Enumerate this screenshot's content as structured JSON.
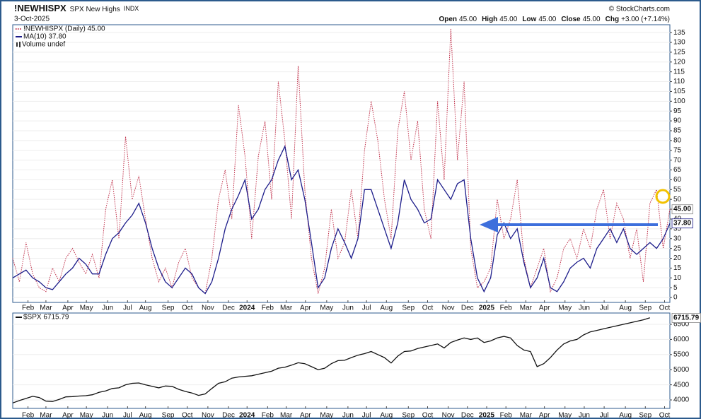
{
  "header": {
    "symbol": "!NEWHISPX",
    "name": "SPX New Highs",
    "exchange": "INDX",
    "date": "3-Oct-2025",
    "copyright": "© StockCharts.com",
    "quote": [
      {
        "label": "Open",
        "value": "45.00"
      },
      {
        "label": "High",
        "value": "45.00"
      },
      {
        "label": "Low",
        "value": "45.00"
      },
      {
        "label": "Close",
        "value": "45.00"
      },
      {
        "label": "Chg",
        "value": "+3.00 (+7.14%)"
      }
    ]
  },
  "chart_data": [
    {
      "type": "line",
      "legend_note": "Volume undef",
      "series": [
        {
          "name": "!NEWHISPX (Daily) 45.00",
          "color": "#c0304a",
          "style": "dotted",
          "last_label": "45.00",
          "values": [
            20,
            8,
            28,
            12,
            5,
            3,
            15,
            8,
            20,
            25,
            18,
            12,
            22,
            10,
            45,
            60,
            30,
            82,
            50,
            62,
            40,
            20,
            8,
            15,
            5,
            18,
            25,
            10,
            5,
            2,
            20,
            50,
            65,
            40,
            98,
            72,
            30,
            72,
            90,
            50,
            110,
            80,
            40,
            118,
            55,
            20,
            2,
            15,
            45,
            20,
            28,
            55,
            30,
            75,
            100,
            80,
            50,
            30,
            85,
            105,
            70,
            90,
            45,
            30,
            100,
            60,
            137,
            70,
            110,
            25,
            5,
            8,
            15,
            50,
            30,
            40,
            60,
            20,
            5,
            15,
            25,
            3,
            10,
            25,
            30,
            20,
            35,
            25,
            45,
            55,
            30,
            48,
            40,
            20,
            35,
            8,
            48,
            55,
            25,
            45
          ]
        },
        {
          "name": "MA(10) 37.80",
          "color": "#1c1c8a",
          "style": "solid",
          "last_label": "37.80",
          "values": [
            10,
            12,
            14,
            10,
            8,
            5,
            4,
            8,
            12,
            15,
            20,
            17,
            12,
            12,
            22,
            30,
            33,
            38,
            42,
            48,
            38,
            25,
            15,
            8,
            5,
            10,
            15,
            12,
            5,
            2,
            8,
            20,
            35,
            45,
            52,
            60,
            40,
            45,
            55,
            60,
            70,
            77,
            60,
            65,
            50,
            28,
            5,
            10,
            25,
            35,
            28,
            20,
            30,
            55,
            55,
            45,
            35,
            25,
            38,
            60,
            50,
            45,
            38,
            40,
            60,
            55,
            50,
            58,
            60,
            30,
            10,
            3,
            10,
            32,
            38,
            30,
            35,
            18,
            5,
            10,
            20,
            5,
            3,
            8,
            15,
            18,
            20,
            15,
            25,
            30,
            35,
            28,
            35,
            25,
            22,
            25,
            28,
            25,
            30,
            37.8
          ]
        }
      ],
      "xlim": [
        0,
        99
      ],
      "xticks": [
        {
          "value": 2.3,
          "label": "Feb"
        },
        {
          "value": 5.0,
          "label": "Mar"
        },
        {
          "value": 8.3,
          "label": "Apr"
        },
        {
          "value": 11.1,
          "label": "May"
        },
        {
          "value": 14.3,
          "label": "Jun"
        },
        {
          "value": 17.3,
          "label": "Jul"
        },
        {
          "value": 20.0,
          "label": "Aug"
        },
        {
          "value": 23.4,
          "label": "Sep"
        },
        {
          "value": 26.3,
          "label": "Oct"
        },
        {
          "value": 29.4,
          "label": "Nov"
        },
        {
          "value": 32.5,
          "label": "Dec"
        },
        {
          "value": 35.3,
          "label": "2024"
        },
        {
          "value": 38.4,
          "label": "Feb"
        },
        {
          "value": 41.2,
          "label": "Mar"
        },
        {
          "value": 44.1,
          "label": "Apr"
        },
        {
          "value": 47.3,
          "label": "May"
        },
        {
          "value": 50.5,
          "label": "Jun"
        },
        {
          "value": 53.3,
          "label": "Jul"
        },
        {
          "value": 56.3,
          "label": "Aug"
        },
        {
          "value": 59.6,
          "label": "Sep"
        },
        {
          "value": 62.5,
          "label": "Oct"
        },
        {
          "value": 65.6,
          "label": "Nov"
        },
        {
          "value": 68.5,
          "label": "Dec"
        },
        {
          "value": 71.4,
          "label": "2025"
        },
        {
          "value": 74.3,
          "label": "Feb"
        },
        {
          "value": 77.3,
          "label": "Mar"
        },
        {
          "value": 80.1,
          "label": "Apr"
        },
        {
          "value": 83.2,
          "label": "May"
        },
        {
          "value": 86.1,
          "label": "Jun"
        },
        {
          "value": 89.1,
          "label": "Jul"
        },
        {
          "value": 92.3,
          "label": "Aug"
        },
        {
          "value": 95.3,
          "label": "Sep"
        },
        {
          "value": 98.2,
          "label": "Oct"
        }
      ],
      "ylim": [
        -2.5,
        139
      ],
      "yticks": [
        0,
        5,
        10,
        15,
        20,
        25,
        30,
        35,
        40,
        45,
        50,
        55,
        60,
        65,
        70,
        75,
        80,
        85,
        90,
        95,
        100,
        105,
        110,
        115,
        120,
        125,
        130,
        135
      ],
      "grid": true
    },
    {
      "type": "line",
      "series": [
        {
          "name": "$SPX 6715.79",
          "color": "#111111",
          "style": "solid",
          "last_label": "6715.79",
          "values": [
            3900,
            3980,
            4050,
            4120,
            4080,
            3960,
            3950,
            4020,
            4100,
            4110,
            4130,
            4140,
            4170,
            4250,
            4300,
            4380,
            4400,
            4500,
            4550,
            4560,
            4500,
            4450,
            4400,
            4460,
            4450,
            4350,
            4280,
            4230,
            4150,
            4200,
            4380,
            4550,
            4600,
            4720,
            4760,
            4780,
            4800,
            4850,
            4900,
            4950,
            5050,
            5080,
            5150,
            5230,
            5200,
            5100,
            5000,
            5050,
            5200,
            5300,
            5310,
            5400,
            5480,
            5530,
            5600,
            5500,
            5400,
            5220,
            5450,
            5600,
            5620,
            5700,
            5750,
            5800,
            5850,
            5720,
            5900,
            5980,
            6050,
            6000,
            6050,
            5900,
            5950,
            6050,
            6100,
            6050,
            5800,
            5650,
            5600,
            5100,
            5200,
            5400,
            5650,
            5850,
            5950,
            6000,
            6150,
            6250,
            6300,
            6350,
            6400,
            6450,
            6500,
            6550,
            6600,
            6650,
            6715.79
          ]
        }
      ],
      "xlim": [
        0,
        99
      ],
      "xticks": [
        {
          "value": 2.3,
          "label": "Feb"
        },
        {
          "value": 5.0,
          "label": "Mar"
        },
        {
          "value": 8.3,
          "label": "Apr"
        },
        {
          "value": 11.1,
          "label": "May"
        },
        {
          "value": 14.3,
          "label": "Jun"
        },
        {
          "value": 17.3,
          "label": "Jul"
        },
        {
          "value": 20.0,
          "label": "Aug"
        },
        {
          "value": 23.4,
          "label": "Sep"
        },
        {
          "value": 26.3,
          "label": "Oct"
        },
        {
          "value": 29.4,
          "label": "Nov"
        },
        {
          "value": 32.5,
          "label": "Dec"
        },
        {
          "value": 35.3,
          "label": "2024"
        },
        {
          "value": 38.4,
          "label": "Feb"
        },
        {
          "value": 41.2,
          "label": "Mar"
        },
        {
          "value": 44.1,
          "label": "Apr"
        },
        {
          "value": 47.3,
          "label": "May"
        },
        {
          "value": 50.5,
          "label": "Jun"
        },
        {
          "value": 53.3,
          "label": "Jul"
        },
        {
          "value": 56.3,
          "label": "Aug"
        },
        {
          "value": 59.6,
          "label": "Sep"
        },
        {
          "value": 62.5,
          "label": "Oct"
        },
        {
          "value": 65.6,
          "label": "Nov"
        },
        {
          "value": 68.5,
          "label": "Dec"
        },
        {
          "value": 71.4,
          "label": "2025"
        },
        {
          "value": 74.3,
          "label": "Feb"
        },
        {
          "value": 77.3,
          "label": "Mar"
        },
        {
          "value": 80.1,
          "label": "Apr"
        },
        {
          "value": 83.2,
          "label": "May"
        },
        {
          "value": 86.1,
          "label": "Jun"
        },
        {
          "value": 89.1,
          "label": "Jul"
        },
        {
          "value": 92.3,
          "label": "Aug"
        },
        {
          "value": 95.3,
          "label": "Sep"
        },
        {
          "value": 98.2,
          "label": "Oct"
        }
      ],
      "ylim": [
        3720,
        6874
      ],
      "yticks": [
        4000,
        4500,
        5000,
        5500,
        6000,
        6500
      ],
      "grid": true
    }
  ]
}
